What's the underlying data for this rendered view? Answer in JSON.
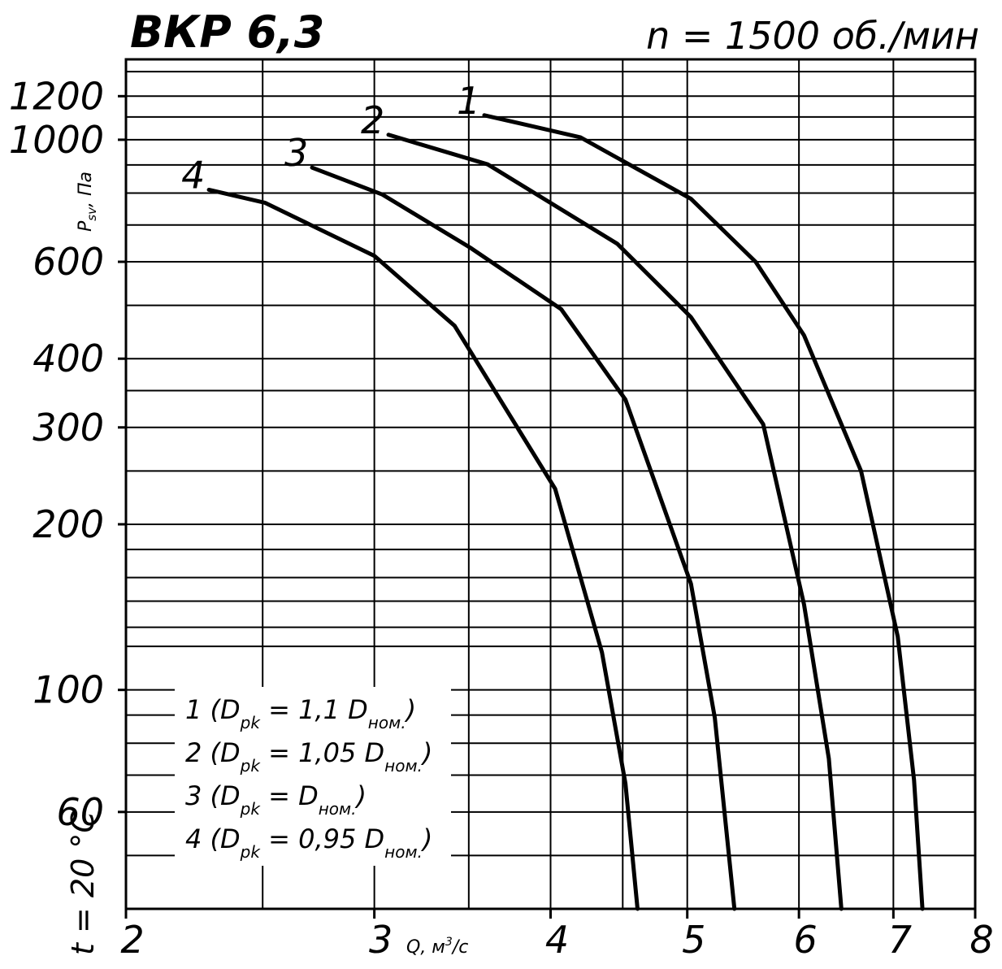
{
  "chart_data": {
    "type": "line",
    "title": "ВКР 6,3",
    "subtitle": "n = 1500 об./мин",
    "x_label": [
      "Q, м",
      "3",
      "/с"
    ],
    "y_label": [
      "P",
      "sv",
      ", Па"
    ],
    "note": "t = 20 °C",
    "log_x": true,
    "log_y": true,
    "grid": true,
    "xlim": [
      2,
      8
    ],
    "ylim": [
      40,
      1400
    ],
    "xticks": [
      2,
      3,
      4,
      5,
      6,
      7,
      8
    ],
    "yticks": [
      60,
      100,
      200,
      300,
      400,
      600,
      1000,
      1200
    ],
    "x_gridlines": [
      2.5,
      3,
      3.5,
      4,
      4.5,
      5,
      6,
      7
    ],
    "y_gridlines": [
      50,
      60,
      70,
      80,
      90,
      100,
      120,
      130,
      145,
      160,
      180,
      200,
      250,
      300,
      350,
      400,
      500,
      600,
      700,
      800,
      900,
      1000,
      1100,
      1200,
      1330
    ],
    "color": "#000000",
    "series": [
      {
        "name": "1",
        "legend": [
          "1 (D",
          "pk",
          " = 1,1 D",
          "ном.",
          ")"
        ],
        "x": [
          3.59,
          4.2,
          5.03,
          5.59,
          6.05,
          6.64,
          7.05,
          7.24,
          7.34
        ],
        "values": [
          1108,
          1010,
          781,
          600,
          441,
          250,
          125,
          68.6,
          40
        ]
      },
      {
        "name": "2",
        "legend": [
          "2 (D",
          "pk",
          " = 1,05 D",
          "ном.",
          ")"
        ],
        "x": [
          3.07,
          3.61,
          4.46,
          5.03,
          5.66,
          6.05,
          6.3,
          6.43
        ],
        "values": [
          1021,
          902,
          647,
          476,
          304,
          143,
          75,
          40
        ]
      },
      {
        "name": "3",
        "legend": [
          "3 (D",
          "pk",
          " = D",
          "ном.",
          ")"
        ],
        "x": [
          2.71,
          3.04,
          3.51,
          4.07,
          4.52,
          5.03,
          5.23,
          5.4
        ],
        "values": [
          890,
          795,
          636,
          492,
          337,
          156,
          89,
          40
        ]
      },
      {
        "name": "4",
        "legend": [
          "4 (D",
          "pk",
          " = 0,95 D",
          "ном.",
          ")"
        ],
        "x": [
          2.29,
          2.51,
          3.0,
          3.42,
          4.03,
          4.35,
          4.52,
          4.61
        ],
        "values": [
          811,
          768,
          615,
          459,
          232,
          117,
          67.6,
          40
        ]
      }
    ]
  }
}
